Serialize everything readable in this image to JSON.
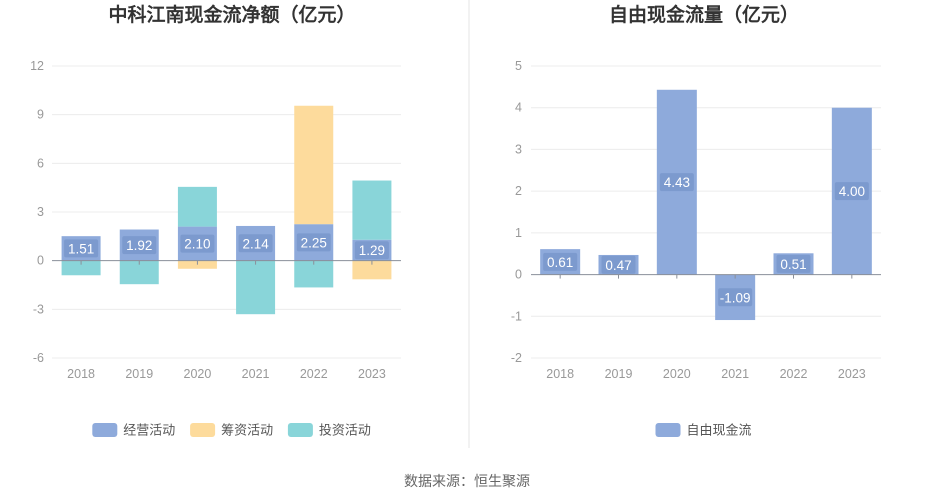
{
  "source": "数据来源：恒生聚源",
  "chart_data": [
    {
      "type": "bar",
      "stacked": true,
      "title": "中科江南现金流净额（亿元）",
      "categories": [
        "2018",
        "2019",
        "2020",
        "2021",
        "2022",
        "2023"
      ],
      "ylim": [
        -6,
        12
      ],
      "yticks": [
        12,
        9,
        6,
        3,
        0,
        -3,
        -6
      ],
      "series": [
        {
          "name": "经营活动",
          "color": "#8eaadb",
          "values": [
            1.51,
            1.92,
            2.1,
            2.14,
            2.25,
            1.29
          ],
          "labels": [
            "1.51",
            "1.92",
            "2.10",
            "2.14",
            "2.25",
            "1.29"
          ]
        },
        {
          "name": "筹资活动",
          "color": "#fddb9c",
          "values": [
            0,
            0,
            -0.5,
            0,
            7.3,
            -1.15
          ]
        },
        {
          "name": "投资活动",
          "color": "#89d5d9",
          "values": [
            -0.9,
            -1.45,
            2.45,
            -3.3,
            -1.65,
            3.65
          ]
        }
      ]
    },
    {
      "type": "bar",
      "title": "自由现金流量（亿元）",
      "categories": [
        "2018",
        "2019",
        "2020",
        "2021",
        "2022",
        "2023"
      ],
      "ylim": [
        -2,
        5
      ],
      "yticks": [
        5,
        4,
        3,
        2,
        1,
        0,
        -1,
        -2
      ],
      "series": [
        {
          "name": "自由现金流",
          "color": "#8eaadb",
          "values": [
            0.61,
            0.47,
            4.43,
            -1.09,
            0.51,
            4.0
          ],
          "labels": [
            "0.61",
            "0.47",
            "4.43",
            "-1.09",
            "0.51",
            "4.00"
          ]
        }
      ]
    }
  ]
}
